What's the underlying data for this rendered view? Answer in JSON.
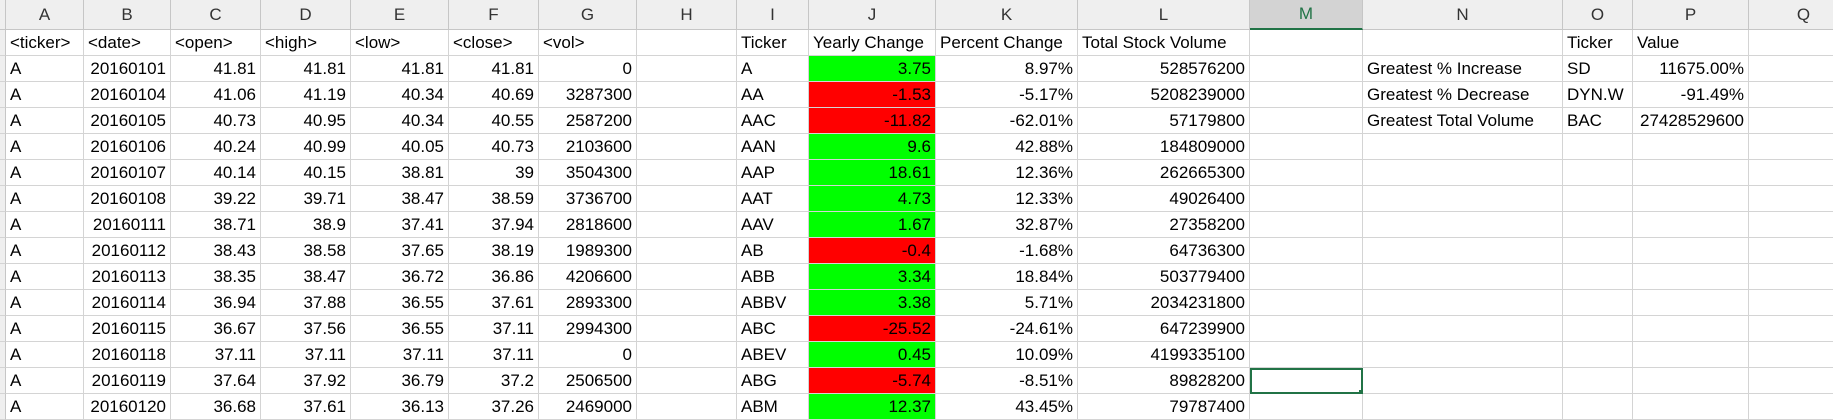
{
  "columns": [
    "A",
    "B",
    "C",
    "D",
    "E",
    "F",
    "G",
    "H",
    "I",
    "J",
    "K",
    "L",
    "M",
    "N",
    "O",
    "P",
    "Q"
  ],
  "selected_column": "M",
  "rows": [
    [
      "<ticker>",
      "<date>",
      "<open>",
      "<high>",
      "<low>",
      "<close>",
      "<vol>",
      "",
      "Ticker",
      "Yearly Change",
      "Percent Change",
      "Total Stock Volume",
      "",
      "",
      "Ticker",
      "Value",
      ""
    ],
    [
      "A",
      "20160101",
      "41.81",
      "41.81",
      "41.81",
      "41.81",
      "0",
      "",
      "A",
      "3.75",
      "8.97%",
      "528576200",
      "",
      "Greatest % Increase",
      "SD",
      "11675.00%",
      ""
    ],
    [
      "A",
      "20160104",
      "41.06",
      "41.19",
      "40.34",
      "40.69",
      "3287300",
      "",
      "AA",
      "-1.53",
      "-5.17%",
      "5208239000",
      "",
      "Greatest % Decrease",
      "DYN.W",
      "-91.49%",
      ""
    ],
    [
      "A",
      "20160105",
      "40.73",
      "40.95",
      "40.34",
      "40.55",
      "2587200",
      "",
      "AAC",
      "-11.82",
      "-62.01%",
      "57179800",
      "",
      "Greatest Total Volume",
      "BAC",
      "27428529600",
      ""
    ],
    [
      "A",
      "20160106",
      "40.24",
      "40.99",
      "40.05",
      "40.73",
      "2103600",
      "",
      "AAN",
      "9.6",
      "42.88%",
      "184809000",
      "",
      "",
      "",
      "",
      ""
    ],
    [
      "A",
      "20160107",
      "40.14",
      "40.15",
      "38.81",
      "39",
      "3504300",
      "",
      "AAP",
      "18.61",
      "12.36%",
      "262665300",
      "",
      "",
      "",
      "",
      ""
    ],
    [
      "A",
      "20160108",
      "39.22",
      "39.71",
      "38.47",
      "38.59",
      "3736700",
      "",
      "AAT",
      "4.73",
      "12.33%",
      "49026400",
      "",
      "",
      "",
      "",
      ""
    ],
    [
      "A",
      "20160111",
      "38.71",
      "38.9",
      "37.41",
      "37.94",
      "2818600",
      "",
      "AAV",
      "1.67",
      "32.87%",
      "27358200",
      "",
      "",
      "",
      "",
      ""
    ],
    [
      "A",
      "20160112",
      "38.43",
      "38.58",
      "37.65",
      "38.19",
      "1989300",
      "",
      "AB",
      "-0.4",
      "-1.68%",
      "64736300",
      "",
      "",
      "",
      "",
      ""
    ],
    [
      "A",
      "20160113",
      "38.35",
      "38.47",
      "36.72",
      "36.86",
      "4206600",
      "",
      "ABB",
      "3.34",
      "18.84%",
      "503779400",
      "",
      "",
      "",
      "",
      ""
    ],
    [
      "A",
      "20160114",
      "36.94",
      "37.88",
      "36.55",
      "37.61",
      "2893300",
      "",
      "ABBV",
      "3.38",
      "5.71%",
      "2034231800",
      "",
      "",
      "",
      "",
      ""
    ],
    [
      "A",
      "20160115",
      "36.67",
      "37.56",
      "36.55",
      "37.11",
      "2994300",
      "",
      "ABC",
      "-25.52",
      "-24.61%",
      "647239900",
      "",
      "",
      "",
      "",
      ""
    ],
    [
      "A",
      "20160118",
      "37.11",
      "37.11",
      "37.11",
      "37.11",
      "0",
      "",
      "ABEV",
      "0.45",
      "10.09%",
      "4199335100",
      "",
      "",
      "",
      "",
      ""
    ],
    [
      "A",
      "20160119",
      "37.64",
      "37.92",
      "36.79",
      "37.2",
      "2506500",
      "",
      "ABG",
      "-5.74",
      "-8.51%",
      "89828200",
      "",
      "",
      "",
      "",
      ""
    ],
    [
      "A",
      "20160120",
      "36.68",
      "37.61",
      "36.13",
      "37.26",
      "2469000",
      "",
      "ABM",
      "12.37",
      "43.45%",
      "79787400",
      "",
      "",
      "",
      "",
      ""
    ]
  ],
  "yearly_change_colors": {
    "positive": "#00ff00",
    "negative": "#ff0000"
  },
  "active_cell": "M14"
}
